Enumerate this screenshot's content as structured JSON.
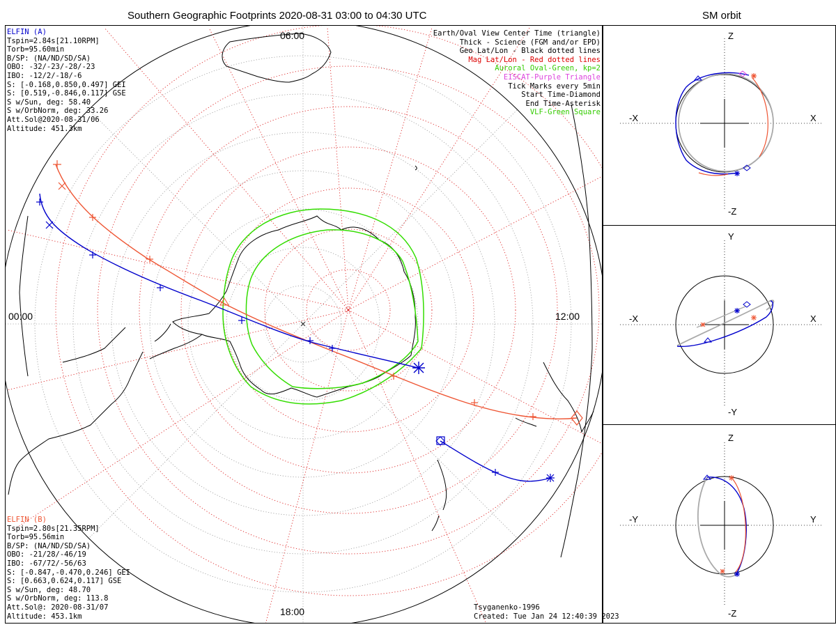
{
  "main_title": "Southern Geographic Footprints 2020-08-31 03:00 to 04:30 UTC",
  "side_title": "SM orbit",
  "map": {
    "time_labels": {
      "top": "06:00",
      "left": "00:00",
      "right": "12:00",
      "bottom": "18:00"
    }
  },
  "elfin_a": {
    "name": "ELFIN (A)",
    "lines": [
      "Tspin=2.84s[21.10RPM]",
      "Torb=95.60min",
      "B/SP: (NA/ND/SD/SA)",
      "OBO: -32/-23/-28/-23",
      "IBO: -12/2/-18/-6",
      "S: [-0.168,0.850,0.497] GEI",
      "S: [0.519,-0.846,0.117] GSE",
      "S w/Sun, deg: 58.40",
      "S w/OrbNorm, deg: 33.26",
      "Att.Sol@2020-08-31/06",
      "Altitude: 451.3km"
    ],
    "color": "#0000cc"
  },
  "elfin_b": {
    "name": "ELFIN (B)",
    "lines": [
      "Tspin=2.80s[21.35RPM]",
      "Torb=95.56min",
      "B/SP: (NA/ND/SD/SA)",
      "OBO: -21/28/-46/19",
      "IBO: -67/72/-56/63",
      "S: [-0.847,-0.470,0.246] GEI",
      "S: [0.663,0.624,0.117] GSE",
      "S w/Sun, deg: 48.70",
      "S w/OrbNorm, deg: 113.8",
      "Att.Sol@: 2020-08-31/07",
      "Altitude: 453.1km"
    ],
    "color": "#ee5533"
  },
  "legend": [
    {
      "text": "Earth/Oval View Center Time (triangle)",
      "color": "#000000"
    },
    {
      "text": "Thick - Science (FGM and/or EPD)",
      "color": "#000000"
    },
    {
      "text": "Geo Lat/Lon - Black dotted lines",
      "color": "#000000"
    },
    {
      "text": "Mag Lat/Lon - Red dotted lines",
      "color": "#dd0000"
    },
    {
      "text": "Auroral Oval-Green, kp=2",
      "color": "#33cc00"
    },
    {
      "text": "EISCAT-Purple Triangle",
      "color": "#dd44dd"
    },
    {
      "text": "Tick Marks every 5min",
      "color": "#000000"
    },
    {
      "text": "Start Time-Diamond",
      "color": "#000000"
    },
    {
      "text": "End Time-Asterisk",
      "color": "#000000"
    },
    {
      "text": "VLF-Green Square",
      "color": "#33cc00"
    }
  ],
  "credits": {
    "model": "Tsyganenko-1996",
    "created": "Created: Tue Jan 24 12:40:39 2023"
  },
  "orbit_panels": [
    {
      "top": "Z",
      "bottom": "-Z",
      "left": "-X",
      "right": "X"
    },
    {
      "top": "Y",
      "bottom": "-Y",
      "left": "-X",
      "right": "X"
    },
    {
      "top": "Z",
      "bottom": "-Z",
      "left": "-Y",
      "right": "Y"
    }
  ],
  "colors": {
    "oval": "#33dd00",
    "mag_grid": "#dd2222",
    "geo_grid": "#999999"
  }
}
